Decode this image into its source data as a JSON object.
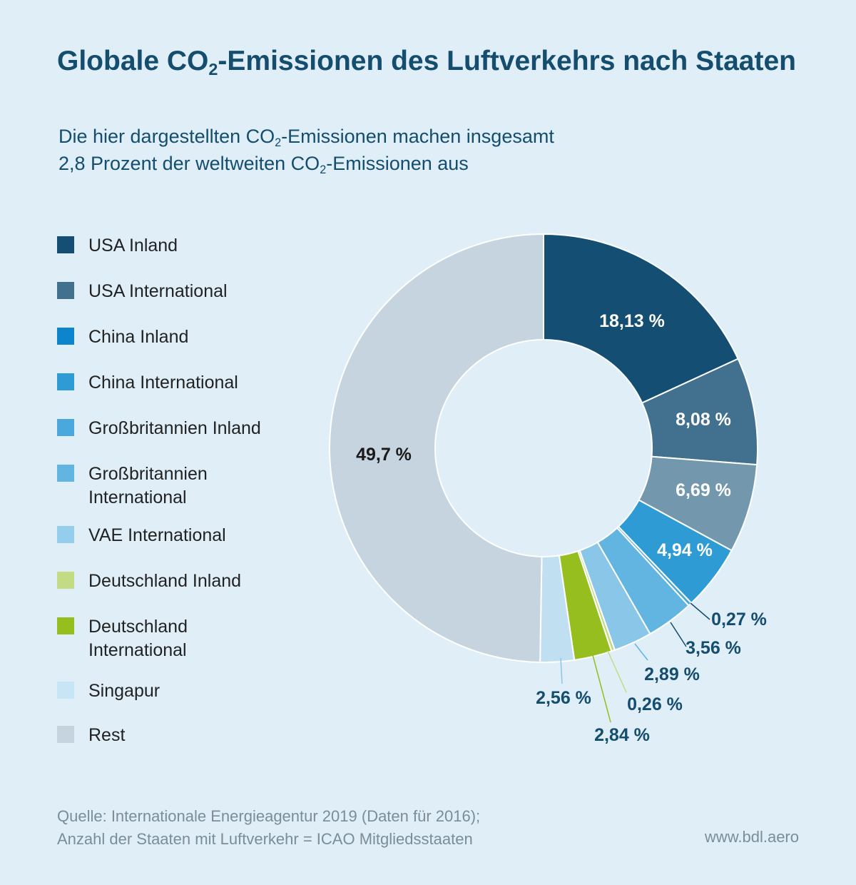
{
  "title": {
    "part1": "Globale CO",
    "sub": "2",
    "part2": "-Emissionen des Luftverkehrs nach Staaten"
  },
  "subtitle": {
    "line1_a": "Die hier dargestellten CO",
    "line1_sub": "2",
    "line1_b": "-Emissionen machen insgesamt",
    "line2_a": "2,8 Prozent der weltweiten CO",
    "line2_sub": "2",
    "line2_b": "-Emissionen aus"
  },
  "footer": {
    "line1": "Quelle: Internationale Energieagentur 2019 (Daten für 2016);",
    "line2": "Anzahl der Staaten mit Luftverkehr = ICAO Mitgliedsstaaten",
    "website": "www.bdl.aero"
  },
  "chart_data": {
    "type": "pie",
    "donut": true,
    "start": "12 o'clock",
    "direction": "clockwise",
    "unit": "%",
    "categories": [
      "USA Inland",
      "USA International",
      "China Inland",
      "China International",
      "Großbritannien Inland",
      "Großbritannien International",
      "VAE International",
      "Deutschland Inland",
      "Deutschland International",
      "Singapur",
      "Rest"
    ],
    "legend_lines": [
      [
        "USA Inland"
      ],
      [
        "USA International"
      ],
      [
        "China Inland"
      ],
      [
        "China International"
      ],
      [
        "Großbritannien Inland"
      ],
      [
        "Großbritannien",
        "International"
      ],
      [
        "VAE International"
      ],
      [
        "Deutschland Inland"
      ],
      [
        "Deutschland",
        "International"
      ],
      [
        "Singapur"
      ],
      [
        "Rest"
      ]
    ],
    "values": [
      18.13,
      8.08,
      6.69,
      4.94,
      0.27,
      3.56,
      2.89,
      0.26,
      2.84,
      2.56,
      49.7
    ],
    "value_labels": [
      "18,13 %",
      "8,08 %",
      "6,69 %",
      "4,94 %",
      "0,27 %",
      "3,56 %",
      "2,89 %",
      "0,26 %",
      "2,84 %",
      "2,56 %",
      "49,7 %"
    ],
    "slice_colors": [
      "#144f73",
      "#42708f",
      "#7398ad",
      "#2f9bd4",
      "#4aa8dc",
      "#62b5e0",
      "#89c6e8",
      "#c3dc84",
      "#96be1f",
      "#c0e0f2",
      "#c6d4df"
    ],
    "legend_colors": [
      "#144f73",
      "#42708f",
      "#0c85cc",
      "#2f9bd4",
      "#4aa8dc",
      "#62b5e0",
      "#95cdec",
      "#c3dc84",
      "#96be1f",
      "#c6e5f5",
      "#c6d4df"
    ],
    "label_colors": [
      "#ffffff",
      "#ffffff",
      "#ffffff",
      "#ffffff",
      "#144d6e",
      "#144d6e",
      "#144d6e",
      "#144d6e",
      "#144d6e",
      "#144d6e",
      "#1a1a1a"
    ],
    "leader_colors": [
      "",
      "",
      "",
      "",
      "#144d6e",
      "#144d6e",
      "#62b5e0",
      "#c3dc84",
      "#96be1f",
      "#89c6e8",
      ""
    ],
    "legend_position": "left"
  }
}
